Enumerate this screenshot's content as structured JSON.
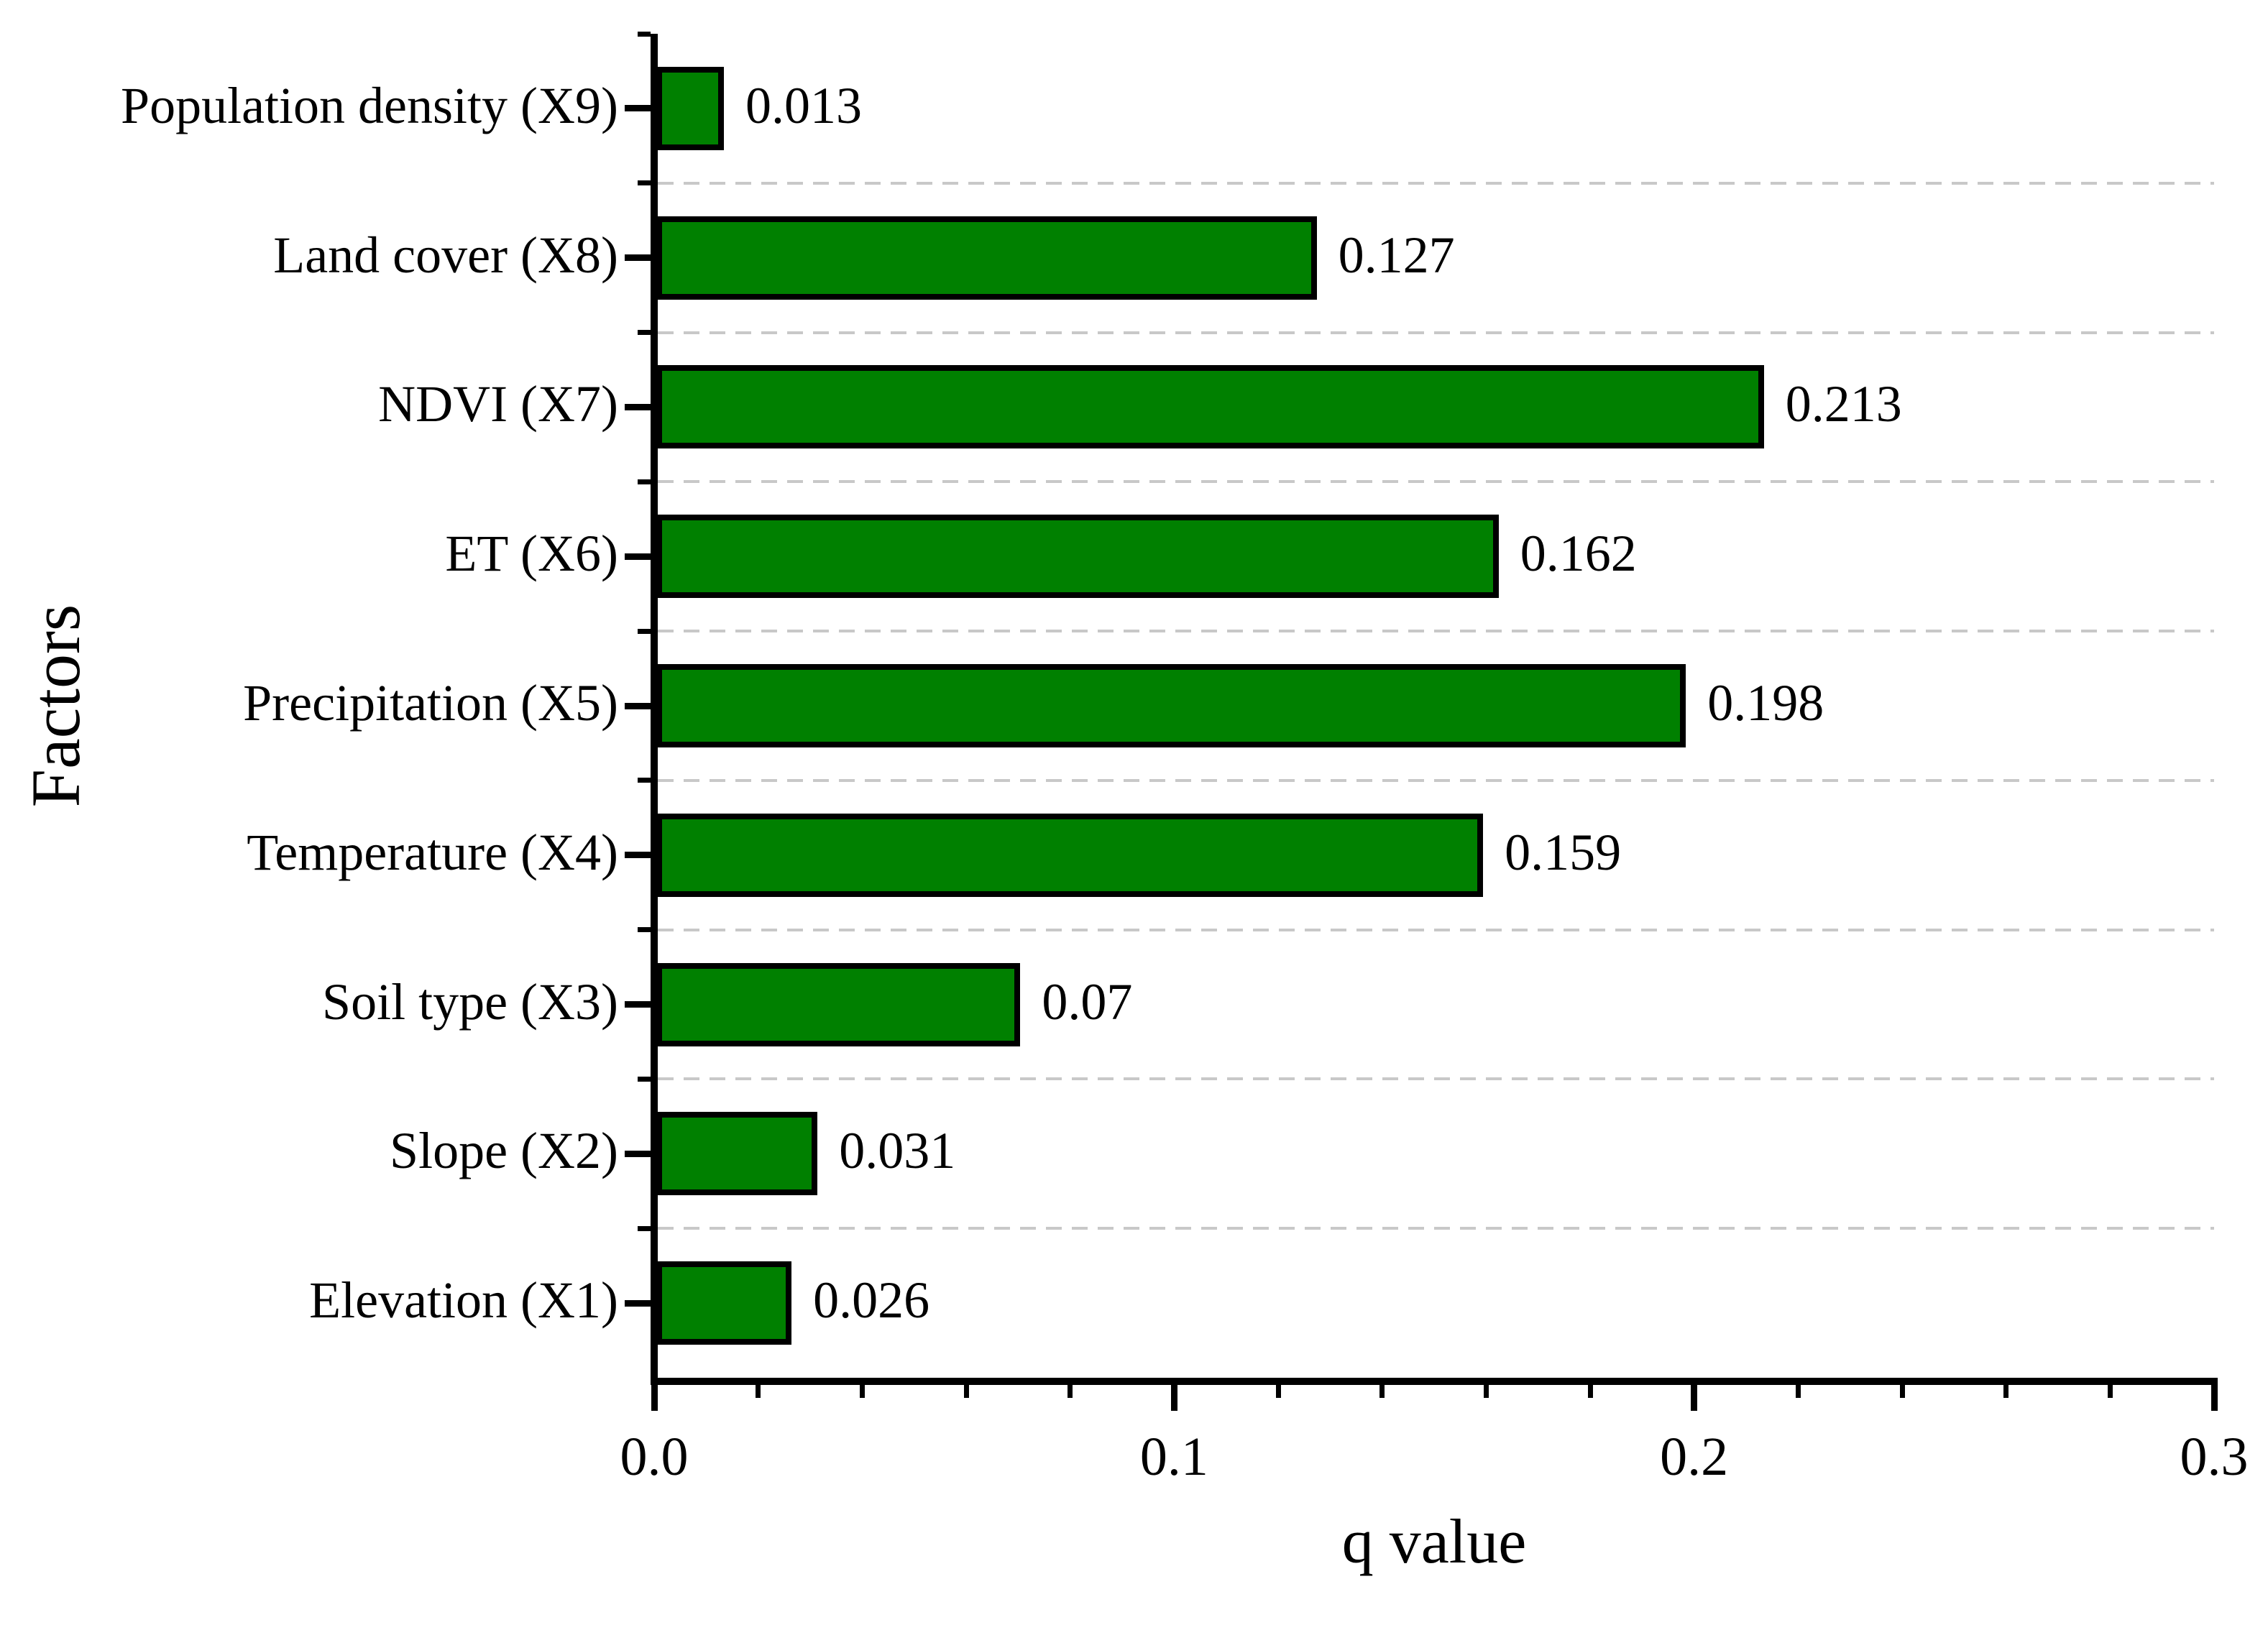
{
  "chart_data": {
    "type": "bar",
    "orientation": "horizontal",
    "xlabel": "q value",
    "ylabel": "Factors",
    "categories": [
      "Population density (X9)",
      "Land cover (X8)",
      "NDVI (X7)",
      "ET (X6)",
      "Precipitation (X5)",
      "Temperature (X4)",
      "Soil type (X3)",
      "Slope (X2)",
      "Elevation (X1)"
    ],
    "values": [
      0.013,
      0.127,
      0.213,
      0.162,
      0.198,
      0.159,
      0.07,
      0.031,
      0.026
    ],
    "value_labels": [
      "0.013",
      "0.127",
      "0.213",
      "0.162",
      "0.198",
      "0.159",
      "0.07",
      "0.031",
      "0.026"
    ],
    "xlim": [
      0,
      0.3
    ],
    "x_major_ticks": [
      {
        "value": 0.0,
        "label": "0.0"
      },
      {
        "value": 0.1,
        "label": "0.1"
      },
      {
        "value": 0.2,
        "label": "0.2"
      },
      {
        "value": 0.3,
        "label": "0.3"
      }
    ],
    "x_minor_tick_step": 0.02,
    "grid": "dashed horizontal gridlines between category rows",
    "legend_position": "none",
    "colors": {
      "bar_fill": "#008000",
      "bar_border": "#000000",
      "axis": "#000000",
      "gridline": "#c8c8c8",
      "text": "#000000",
      "background": "#ffffff"
    }
  }
}
